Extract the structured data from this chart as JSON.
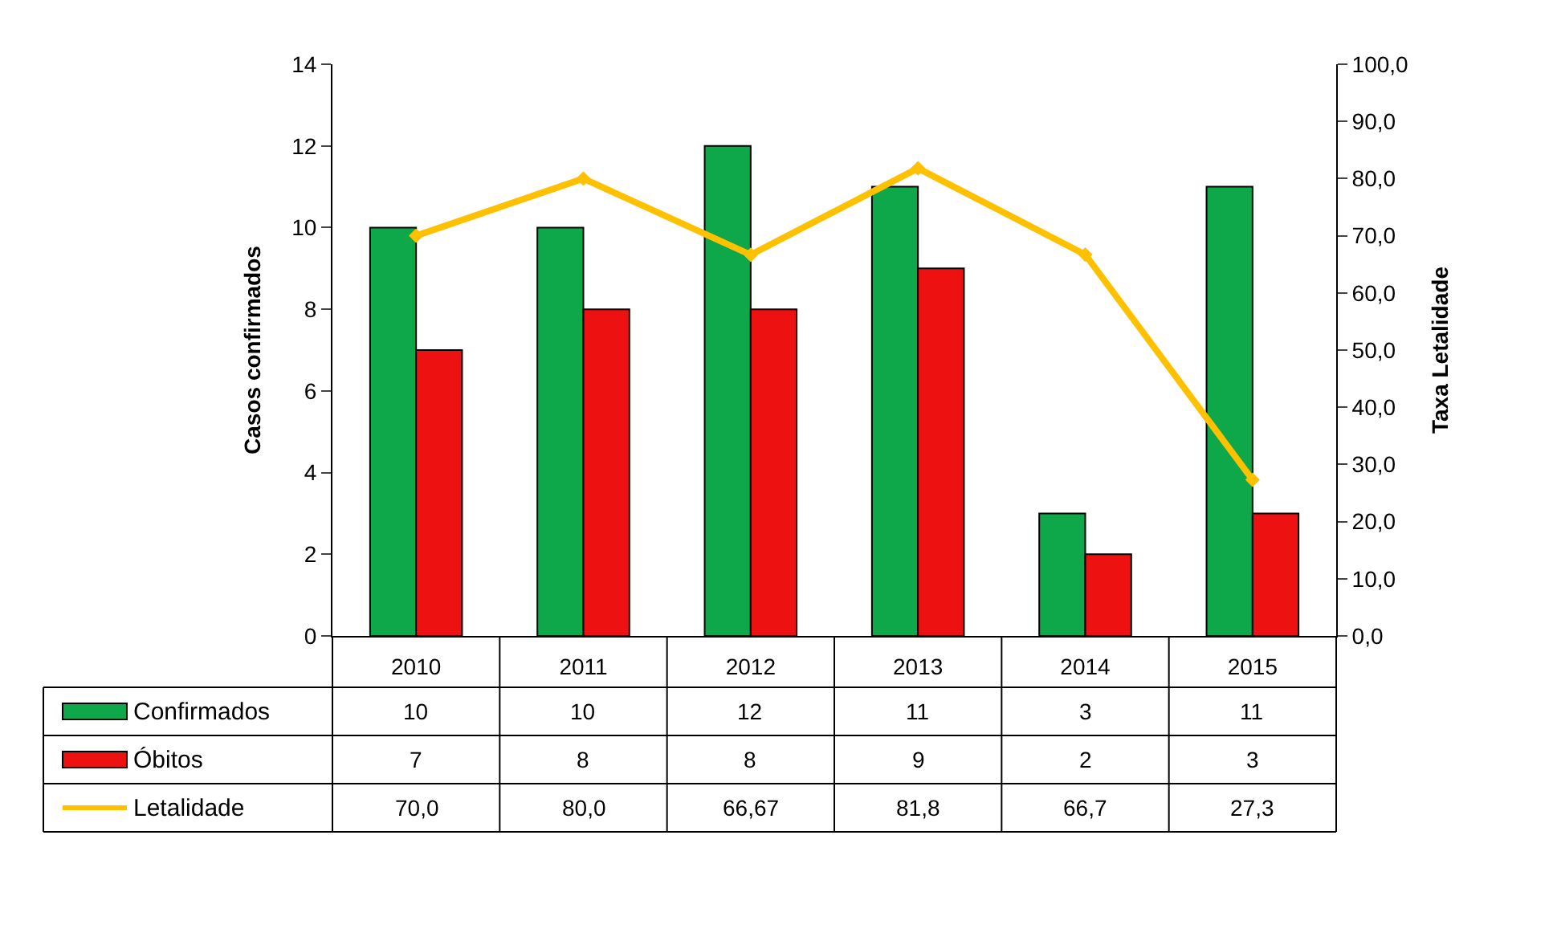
{
  "chart_data": {
    "type": "bar",
    "categories": [
      "2010",
      "2011",
      "2012",
      "2013",
      "2014",
      "2015"
    ],
    "ylabel": "Casos confirmados",
    "y2label": "Taxa Letalidade",
    "ylim": [
      0,
      14
    ],
    "yticks": [
      0,
      2,
      4,
      6,
      8,
      10,
      12,
      14
    ],
    "y2lim": [
      0,
      100
    ],
    "y2ticks": [
      {
        "value": 0,
        "label": "0,0"
      },
      {
        "value": 10,
        "label": "10,0"
      },
      {
        "value": 20,
        "label": "20,0"
      },
      {
        "value": 30,
        "label": "30,0"
      },
      {
        "value": 40,
        "label": "40,0"
      },
      {
        "value": 50,
        "label": "50,0"
      },
      {
        "value": 60,
        "label": "60,0"
      },
      {
        "value": 70,
        "label": "70,0"
      },
      {
        "value": 80,
        "label": "80,0"
      },
      {
        "value": 90,
        "label": "90,0"
      },
      {
        "value": 100,
        "label": "100,0"
      }
    ],
    "legend": "bottom",
    "series": [
      {
        "name": "Confirmados",
        "color": "#0ea84a",
        "values": [
          10,
          10,
          12,
          11,
          3,
          11
        ],
        "value_labels": [
          "10",
          "10",
          "12",
          "11",
          "3",
          "11"
        ]
      },
      {
        "name": "Óbitos",
        "color": "#ee1111",
        "values": [
          7,
          8,
          8,
          9,
          2,
          3
        ],
        "value_labels": [
          "7",
          "8",
          "8",
          "9",
          "2",
          "3"
        ]
      },
      {
        "name": "Letalidade",
        "type": "line",
        "axis": "y2",
        "color": "#ffc000",
        "marker": "diamond",
        "values": [
          70.0,
          80.0,
          66.67,
          81.8,
          66.7,
          27.3
        ],
        "value_labels": [
          "70,0",
          "80,0",
          "66,67",
          "81,8",
          "66,7",
          "27,3"
        ]
      }
    ]
  }
}
